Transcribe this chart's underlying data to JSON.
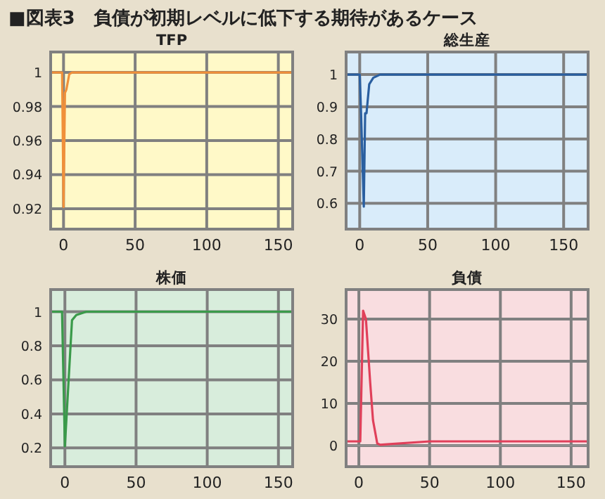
{
  "chart_data": [
    {
      "type": "line",
      "title": "TFP",
      "annotations": [
        "■図表3　負債が初期レベルに低下する期待があるケース"
      ],
      "x": [
        -9,
        -1,
        0,
        1,
        2,
        4,
        6,
        160
      ],
      "series": [
        {
          "color": "#f0903a",
          "values": [
            1,
            1,
            0.921,
            0.988,
            0.99,
            0.999,
            1,
            1
          ]
        }
      ],
      "xlim": [
        -9,
        160
      ],
      "ylim": [
        0.908,
        1.012
      ],
      "xticks": [
        0,
        50,
        100,
        150
      ],
      "yticks": [
        0.92,
        0.94,
        0.96,
        0.98,
        1
      ],
      "grid": true
    },
    {
      "type": "line",
      "title": "総生産",
      "x": [
        -10,
        0,
        1,
        3,
        4,
        5,
        7,
        10,
        15,
        168
      ],
      "series": [
        {
          "color": "#2a5fa0",
          "values": [
            1,
            1,
            0.88,
            0.59,
            0.88,
            0.88,
            0.97,
            0.99,
            1,
            1
          ]
        }
      ],
      "xlim": [
        -10,
        168
      ],
      "ylim": [
        0.52,
        1.07
      ],
      "xticks": [
        0,
        50,
        100,
        150
      ],
      "yticks": [
        0.6,
        0.7,
        0.8,
        0.9,
        1
      ],
      "grid": true
    },
    {
      "type": "line",
      "title": "株価",
      "x": [
        -10,
        -2,
        0,
        5,
        8,
        15,
        160
      ],
      "series": [
        {
          "color": "#3a9a4a",
          "values": [
            1,
            1,
            0.21,
            0.95,
            0.98,
            1,
            1
          ]
        }
      ],
      "xlim": [
        -10,
        160
      ],
      "ylim": [
        0.09,
        1.13
      ],
      "xticks": [
        0,
        50,
        100,
        150
      ],
      "yticks": [
        0.2,
        0.4,
        0.6,
        0.8,
        1
      ],
      "grid": true
    },
    {
      "type": "line",
      "title": "負債",
      "x": [
        -9,
        0,
        1,
        3,
        5,
        8,
        10,
        13,
        15,
        20,
        50,
        100,
        162
      ],
      "series": [
        {
          "color": "#e0405a",
          "values": [
            1,
            1,
            1,
            32,
            30,
            15,
            6,
            0.5,
            0.2,
            0.3,
            1,
            1,
            1
          ]
        }
      ],
      "xlim": [
        -9,
        162
      ],
      "ylim": [
        -5,
        37
      ],
      "xticks": [
        0,
        50,
        100,
        150
      ],
      "yticks": [
        0,
        10,
        20,
        30
      ],
      "grid": true,
      "ref_lines": [
        {
          "axis": "y",
          "value": 0,
          "color": "#909090"
        }
      ]
    }
  ]
}
